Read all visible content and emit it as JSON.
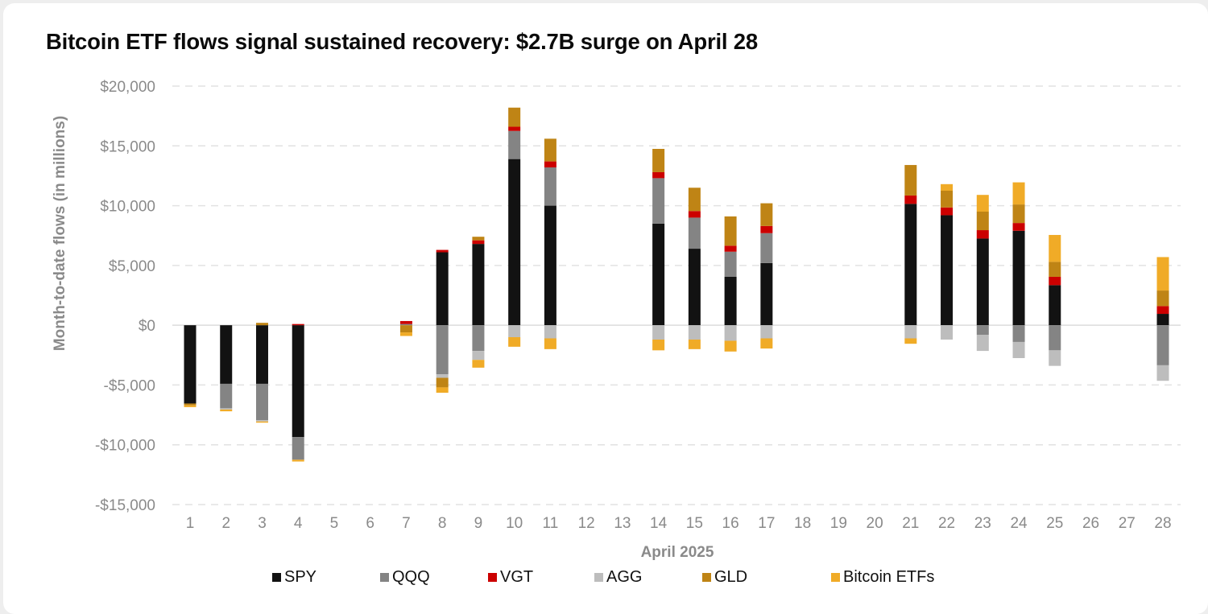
{
  "chart_data": {
    "type": "bar",
    "stacked": true,
    "title": "Bitcoin ETF flows signal sustained recovery: $2.7B surge on April 28",
    "xlabel": "April 2025",
    "ylabel": "Month-to-date flows (in millions)",
    "ylim": [
      -15000,
      20000
    ],
    "yticks": [
      20000,
      15000,
      10000,
      5000,
      0,
      -5000,
      -10000,
      -15000
    ],
    "ytick_labels": [
      "$20,000",
      "$15,000",
      "$10,000",
      "$5,000",
      "$0",
      "-$5,000",
      "-$10,000",
      "-$15,000"
    ],
    "grid": true,
    "legend_position": "bottom",
    "categories": [
      "1",
      "2",
      "3",
      "4",
      "5",
      "6",
      "7",
      "8",
      "9",
      "10",
      "11",
      "12",
      "13",
      "14",
      "15",
      "16",
      "17",
      "18",
      "19",
      "20",
      "21",
      "22",
      "23",
      "24",
      "25",
      "26",
      "27",
      "28"
    ],
    "series": [
      {
        "name": "SPY",
        "color": "#121212",
        "values": [
          -6550,
          -4900,
          -4900,
          -9350,
          null,
          null,
          0,
          6100,
          6800,
          13900,
          10000,
          null,
          null,
          8500,
          6400,
          4050,
          5200,
          null,
          null,
          null,
          10150,
          9200,
          7250,
          7900,
          3350,
          null,
          null,
          950
        ]
      },
      {
        "name": "QQQ",
        "color": "#848484",
        "values": [
          0,
          -2050,
          -3050,
          -1900,
          null,
          null,
          100,
          -4100,
          -2150,
          2350,
          3200,
          null,
          null,
          3800,
          2600,
          2100,
          2500,
          null,
          null,
          null,
          0,
          0,
          -800,
          -1400,
          -2100,
          null,
          null,
          -3350
        ]
      },
      {
        "name": "VGT",
        "color": "#cc0000",
        "values": [
          0,
          0,
          0,
          100,
          null,
          null,
          250,
          200,
          300,
          350,
          500,
          null,
          null,
          500,
          550,
          500,
          600,
          null,
          null,
          null,
          700,
          650,
          700,
          650,
          700,
          null,
          null,
          650
        ]
      },
      {
        "name": "AGG",
        "color": "#bdbdbd",
        "values": [
          0,
          -100,
          -100,
          0,
          null,
          null,
          0,
          -300,
          -750,
          -1000,
          -1100,
          null,
          null,
          -1200,
          -1200,
          -1300,
          -1100,
          null,
          null,
          null,
          -1100,
          -1200,
          -1350,
          -1350,
          -1300,
          null,
          null,
          -1300
        ]
      },
      {
        "name": "GLD",
        "color": "#bf8415",
        "values": [
          -150,
          0,
          200,
          0,
          null,
          null,
          -600,
          -800,
          300,
          1600,
          1900,
          null,
          null,
          1950,
          1950,
          2450,
          1900,
          null,
          null,
          null,
          2550,
          1400,
          1550,
          1550,
          1250,
          null,
          null,
          1300
        ]
      },
      {
        "name": "Bitcoin ETFs",
        "color": "#f0ab27",
        "values": [
          -150,
          -150,
          -100,
          -150,
          null,
          null,
          -300,
          -450,
          -650,
          -800,
          -900,
          null,
          null,
          -900,
          -800,
          -900,
          -850,
          null,
          null,
          null,
          -450,
          550,
          1400,
          1850,
          2250,
          null,
          null,
          2800
        ]
      }
    ]
  }
}
